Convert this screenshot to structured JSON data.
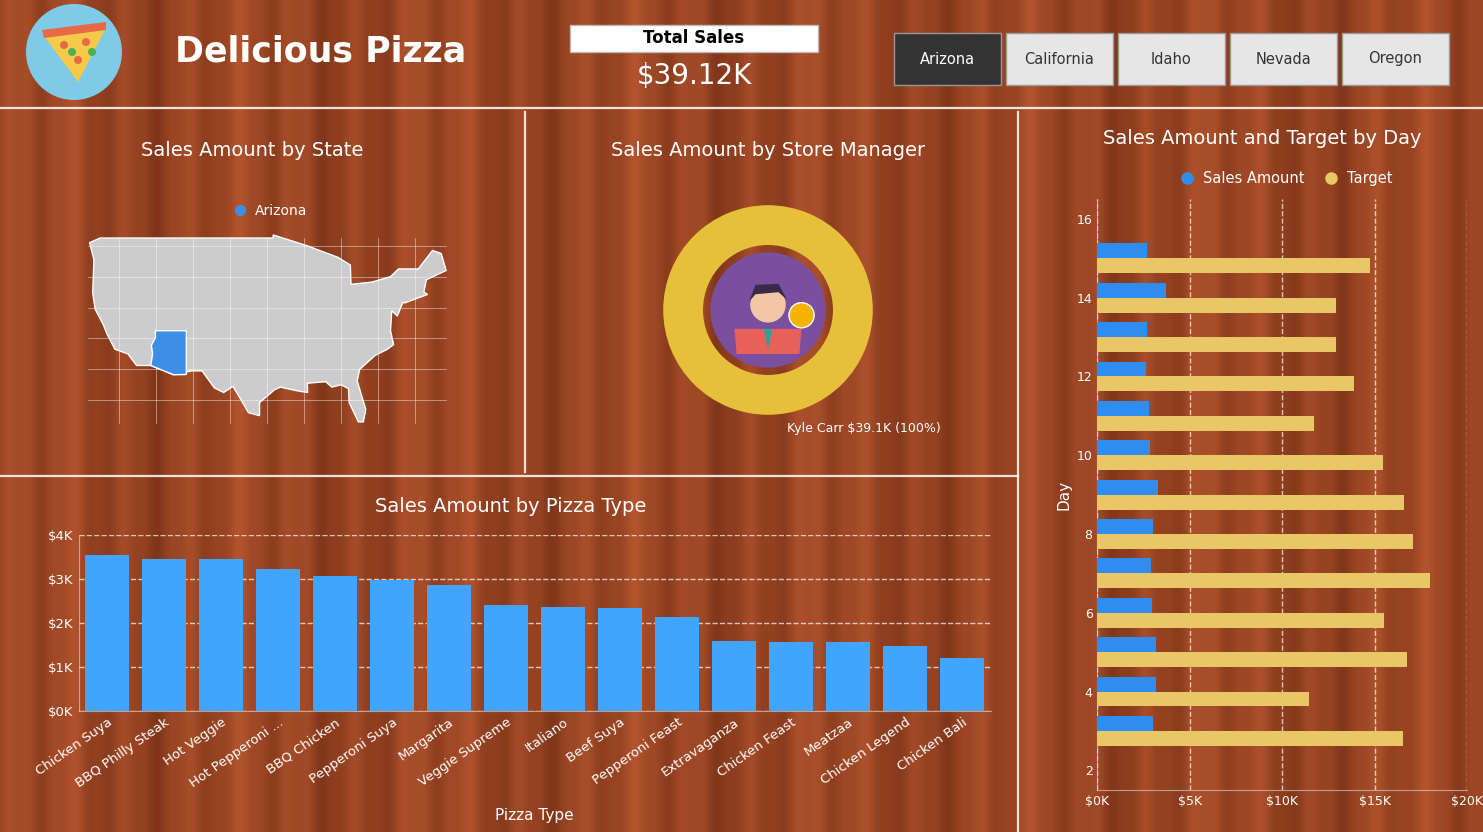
{
  "header": {
    "title": "Delicious Pizza",
    "card": {
      "label": "Total Sales",
      "value": "$39.12K"
    },
    "slicer": {
      "options": [
        "Arizona",
        "California",
        "Idaho",
        "Nevada",
        "Oregon"
      ],
      "selected": "Arizona"
    }
  },
  "chart_data": [
    {
      "type": "map",
      "title": "Sales Amount by State",
      "categories": [
        "Arizona"
      ],
      "colors": [
        "#3d8fe6"
      ],
      "legend": "top"
    },
    {
      "type": "donut",
      "title": "Sales Amount by Store Manager",
      "categories": [
        "Kyle Carr"
      ],
      "values": [
        39100
      ],
      "value_labels": [
        "$39.1K (100%)"
      ],
      "colors": [
        "#e6c03a"
      ],
      "data_labels": true
    },
    {
      "type": "bar",
      "title": "Sales Amount by Pizza Type",
      "x_label": "Pizza Type",
      "categories": [
        "Chicken Suya",
        "BBQ Philly Steak",
        "Hot Veggie",
        "Hot Pepperoni ...",
        "BBQ Chicken",
        "Pepperoni Suya",
        "Margarita",
        "Veggie Supreme",
        "Italiano",
        "Beef Suya",
        "Pepperoni Feast",
        "Extravaganza",
        "Chicken Feast",
        "Meatzaa",
        "Chicken Legend",
        "Chicken Bali"
      ],
      "values": [
        3550,
        3450,
        3450,
        3230,
        3070,
        2980,
        2860,
        2410,
        2360,
        2340,
        2140,
        1590,
        1570,
        1570,
        1480,
        1200
      ],
      "color": "#41a5ff",
      "ylim": [
        0,
        4000
      ],
      "yticks": [
        {
          "value": 0,
          "label": "$0K"
        },
        {
          "value": 1000,
          "label": "$1K"
        },
        {
          "value": 2000,
          "label": "$2K"
        },
        {
          "value": 3000,
          "label": "$3K"
        },
        {
          "value": 4000,
          "label": "$4K"
        }
      ],
      "grid": true
    },
    {
      "type": "bar",
      "orientation": "horizontal",
      "title": "Sales Amount and Target by Day",
      "y_label": "Day",
      "x": [
        3,
        4,
        5,
        6,
        7,
        8,
        9,
        10,
        11,
        12,
        13,
        14,
        15
      ],
      "series": [
        {
          "name": "Sales Amount",
          "color": "#2f8df0",
          "values": [
            3030,
            3190,
            3190,
            2970,
            2920,
            3030,
            3300,
            2860,
            2810,
            2650,
            2700,
            3680,
            2700
          ]
        },
        {
          "name": "Target",
          "color": "#e9c766",
          "values": [
            16540,
            11460,
            16760,
            15510,
            18000,
            17080,
            16590,
            15410,
            11730,
            13890,
            12920,
            12920,
            14760
          ]
        }
      ],
      "xlim": [
        0,
        20000
      ],
      "xticks": [
        {
          "value": 0,
          "label": "$0K"
        },
        {
          "value": 5000,
          "label": "$5K"
        },
        {
          "value": 10000,
          "label": "$10K"
        },
        {
          "value": 15000,
          "label": "$15K"
        },
        {
          "value": 20000,
          "label": "$20K"
        }
      ],
      "ylim": [
        1.5,
        16.5
      ],
      "yticks": [
        2,
        4,
        6,
        8,
        10,
        12,
        14,
        16
      ],
      "grid": true,
      "legend": "top"
    }
  ]
}
